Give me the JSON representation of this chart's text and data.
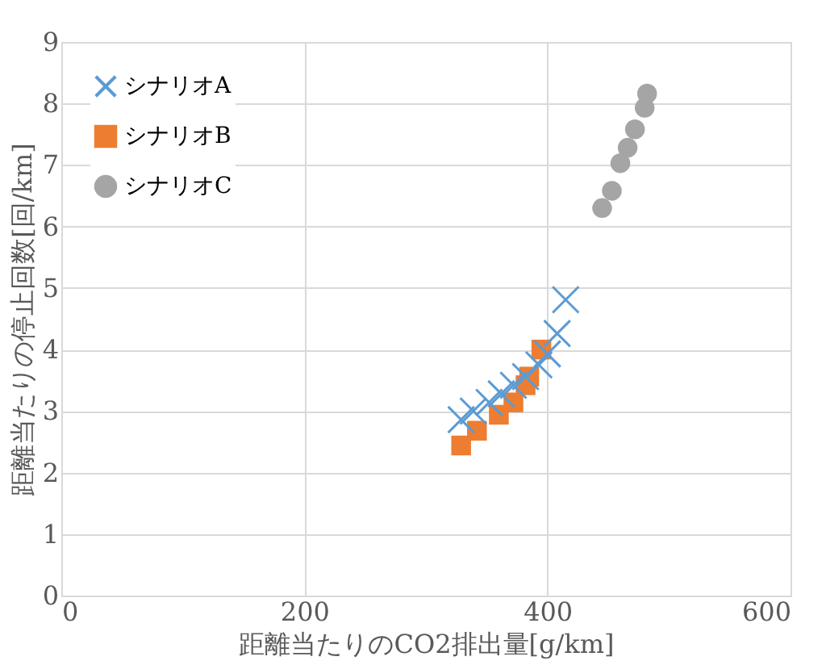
{
  "chart_data": {
    "type": "scatter",
    "xlabel": "距離当たりのCO2排出量[g/km]",
    "ylabel": "距離当たりの停止回数[回/km]",
    "xlim": [
      0,
      600
    ],
    "xticks": [
      0,
      200,
      400,
      600
    ],
    "ylim": [
      0,
      9
    ],
    "yticks": [
      0,
      1,
      2,
      3,
      4,
      5,
      6,
      7,
      8,
      9
    ],
    "grid": true,
    "legend": "top left",
    "series": [
      {
        "name": "シナリオA",
        "color": "#5b9bd5",
        "marker": "cross",
        "x": [
          329,
          339,
          352,
          362,
          372,
          382,
          393,
          400,
          408,
          415
        ],
        "values": [
          2.86,
          3.0,
          3.14,
          3.28,
          3.42,
          3.56,
          3.75,
          3.93,
          4.26,
          4.81
        ]
      },
      {
        "name": "シナリオB",
        "color": "#ed7d31",
        "marker": "square",
        "x": [
          329,
          342,
          360,
          372,
          382,
          385,
          395
        ],
        "values": [
          2.44,
          2.68,
          2.94,
          3.14,
          3.42,
          3.56,
          4.0
        ]
      },
      {
        "name": "シナリオC",
        "color": "#a5a5a5",
        "marker": "circle",
        "x": [
          445,
          453,
          460,
          466,
          472,
          480,
          482
        ],
        "values": [
          6.3,
          6.58,
          7.03,
          7.28,
          7.58,
          7.93,
          8.16
        ]
      }
    ]
  }
}
